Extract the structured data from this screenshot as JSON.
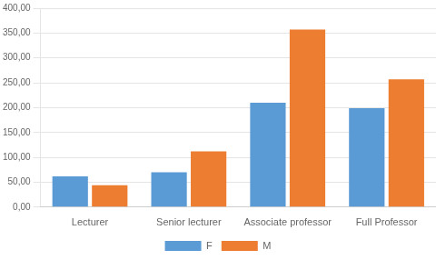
{
  "chart_data": {
    "type": "bar",
    "categories": [
      "Lecturer",
      "Senior lecturer",
      "Associate professor",
      "Full Professor"
    ],
    "series": [
      {
        "name": "F",
        "color": "#5b9bd5",
        "values": [
          62,
          70,
          210,
          199
        ]
      },
      {
        "name": "M",
        "color": "#ed7d31",
        "values": [
          44,
          112,
          357,
          257
        ]
      }
    ],
    "ylim": [
      0,
      400
    ],
    "yticks": [
      {
        "value": 0,
        "label": "0,00"
      },
      {
        "value": 50,
        "label": "50,00"
      },
      {
        "value": 100,
        "label": "100,00"
      },
      {
        "value": 150,
        "label": "150,00"
      },
      {
        "value": 200,
        "label": "200,00"
      },
      {
        "value": 250,
        "label": "250,00"
      },
      {
        "value": 300,
        "label": "300,00"
      },
      {
        "value": 350,
        "label": "350,00"
      },
      {
        "value": 400,
        "label": "400,00"
      }
    ],
    "grid": true,
    "legend": "bottom"
  }
}
